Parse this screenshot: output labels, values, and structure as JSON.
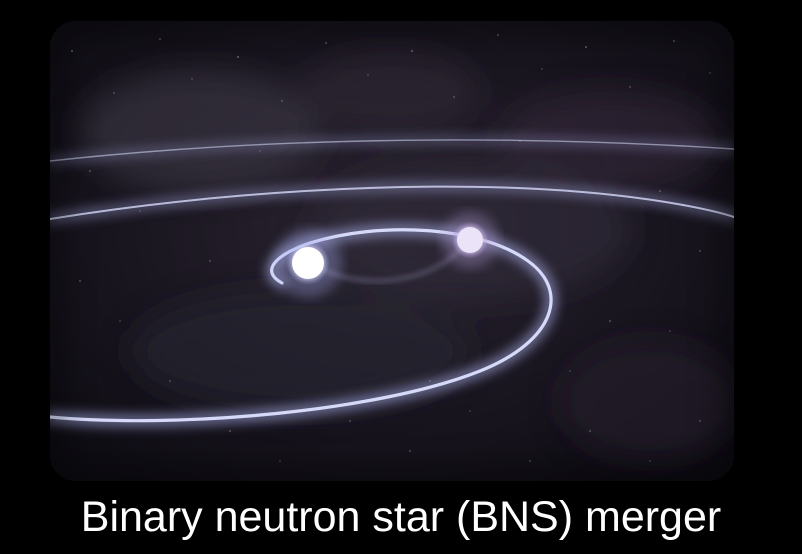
{
  "caption": "Binary neutron star (BNS) merger",
  "scene": {
    "subject": "binary neutron star inspiral illustration",
    "icons": [
      "neutron-star-icon",
      "neutron-star-icon",
      "orbit-spiral-icon"
    ]
  },
  "colors": {
    "background": "#000000",
    "space_dark": "#15121c",
    "space_haze": "#3a3340",
    "orbit_glow": "#b9bff2",
    "star_left": "#ffffff",
    "star_right": "#ddd2f2",
    "caption_text": "#ffffff"
  }
}
